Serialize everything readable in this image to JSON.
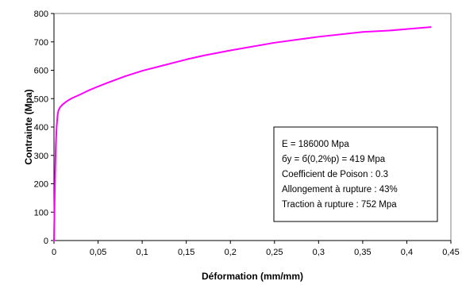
{
  "chart_data": {
    "type": "line",
    "xlabel": "Déformation (mm/mm)",
    "ylabel": "Contrainte (Mpa)",
    "xlim": [
      0,
      0.45
    ],
    "ylim": [
      0,
      800
    ],
    "x_ticks": [
      0,
      0.05,
      0.1,
      0.15,
      0.2,
      0.25,
      0.3,
      0.35,
      0.4,
      0.45
    ],
    "x_tick_labels": [
      "0",
      "0,05",
      "0,1",
      "0,15",
      "0,2",
      "0,25",
      "0,3",
      "0,35",
      "0,4",
      "0,45"
    ],
    "y_ticks": [
      0,
      100,
      200,
      300,
      400,
      500,
      600,
      700,
      800
    ],
    "y_tick_labels": [
      "0",
      "100",
      "200",
      "300",
      "400",
      "500",
      "600",
      "700",
      "800"
    ],
    "grid": false,
    "line_color": "#ff00ff",
    "series": [
      {
        "x": [
          0,
          0.0005,
          0.001,
          0.0015,
          0.002,
          0.003,
          0.004,
          0.005,
          0.007,
          0.01,
          0.015,
          0.02,
          0.03,
          0.04,
          0.05,
          0.06,
          0.08,
          0.1,
          0.12,
          0.15,
          0.17,
          0.2,
          0.25,
          0.3,
          0.35,
          0.38,
          0.4,
          0.427
        ],
        "y": [
          0,
          93,
          186,
          260,
          330,
          400,
          440,
          458,
          470,
          480,
          492,
          501,
          515,
          530,
          543,
          555,
          578,
          598,
          614,
          638,
          652,
          670,
          697,
          718,
          735,
          740,
          745,
          752
        ]
      }
    ],
    "annotation": {
      "lines": [
        "E = 186000 Mpa",
        "бy = б(0,2%p) =  419 Mpa",
        "Coefficient de Poison : 0.3",
        "Allongement à rupture : 43%",
        "Traction à rupture : 752 Mpa"
      ]
    }
  }
}
